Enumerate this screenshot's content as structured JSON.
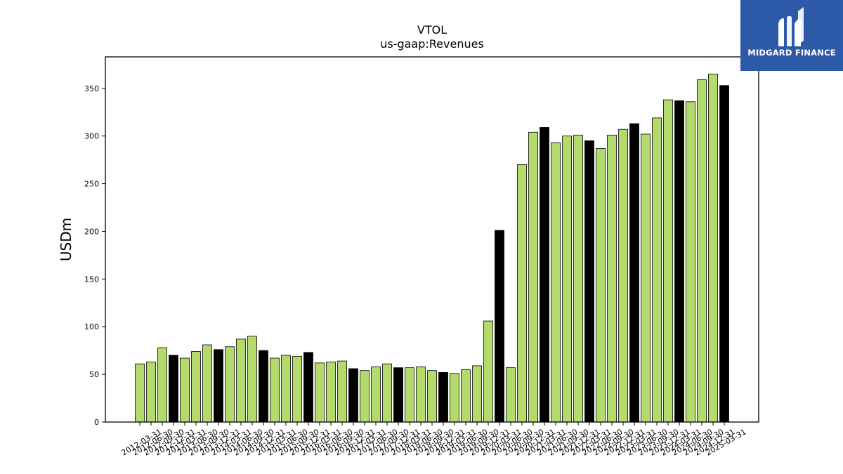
{
  "brand": {
    "name": "MIDGARD FINANCE",
    "bg_color": "#2d5aa8"
  },
  "chart_data": {
    "type": "bar",
    "title": "VTOL",
    "subtitle": "us-gaap:Revenues",
    "ylabel": "USDm",
    "xlabel": "",
    "ylim": [
      0,
      383
    ],
    "yticks": [
      0,
      50,
      100,
      150,
      200,
      250,
      300,
      350
    ],
    "grid": false,
    "colors": {
      "quarter": "#b3db6b",
      "year_end": "#000000",
      "edge": "#000000"
    },
    "categories": [
      "2012-03-31",
      "2012-06-30",
      "2012-09-30",
      "2012-12-31",
      "2013-03-31",
      "2013-06-30",
      "2013-09-30",
      "2013-12-31",
      "2014-03-31",
      "2014-06-30",
      "2014-09-30",
      "2014-12-31",
      "2015-03-31",
      "2015-06-30",
      "2015-09-30",
      "2015-12-31",
      "2016-03-31",
      "2016-06-30",
      "2016-09-30",
      "2016-12-31",
      "2017-03-31",
      "2017-06-30",
      "2017-09-30",
      "2017-12-31",
      "2018-03-31",
      "2018-06-30",
      "2018-09-30",
      "2018-12-31",
      "2019-03-31",
      "2019-06-30",
      "2019-09-30",
      "2019-12-31",
      "2020-03-31",
      "2020-06-30",
      "2020-09-30",
      "2020-12-31",
      "2021-03-31",
      "2021-06-30",
      "2021-09-30",
      "2021-12-31",
      "2022-03-31",
      "2022-06-30",
      "2022-09-30",
      "2022-12-31",
      "2023-03-31",
      "2023-06-30",
      "2023-09-30",
      "2023-12-31",
      "2024-03-31",
      "2024-06-30",
      "2024-09-30",
      "2024-12-31",
      "2025-03-31"
    ],
    "values": [
      61,
      63,
      78,
      70,
      67,
      74,
      81,
      76,
      79,
      87,
      90,
      75,
      67,
      70,
      69,
      73,
      62,
      63,
      64,
      56,
      54,
      58,
      61,
      57,
      57,
      58,
      54,
      52,
      51,
      55,
      59,
      106,
      201,
      57,
      270,
      304,
      309,
      293,
      300,
      301,
      295,
      287,
      301,
      307,
      313,
      302,
      319,
      338,
      337,
      336,
      359,
      365,
      353
    ],
    "highlight": [
      false,
      false,
      false,
      true,
      false,
      false,
      false,
      true,
      false,
      false,
      false,
      true,
      false,
      false,
      false,
      true,
      false,
      false,
      false,
      true,
      false,
      false,
      false,
      true,
      false,
      false,
      false,
      true,
      false,
      false,
      false,
      false,
      true,
      false,
      false,
      false,
      true,
      false,
      false,
      false,
      true,
      false,
      false,
      false,
      true,
      false,
      false,
      false,
      true,
      false,
      false,
      false,
      true
    ]
  }
}
